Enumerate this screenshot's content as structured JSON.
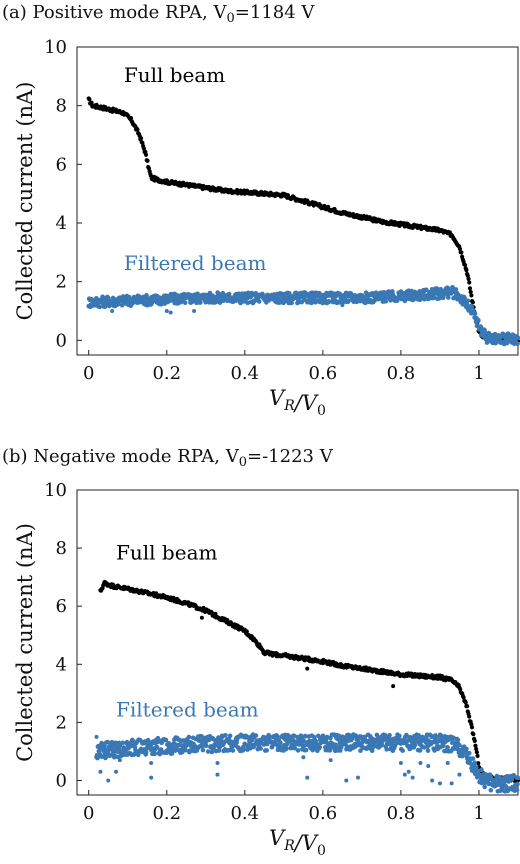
{
  "chart_data": [
    {
      "type": "scatter",
      "panel": "(a)",
      "title": "(a) Positive mode RPA, V",
      "title_sub": "0",
      "title_tail": "=1184 V",
      "xlabel": "V_R/V_0",
      "ylabel": "Collected current (nA)",
      "xlim": [
        -0.03,
        1.1
      ],
      "ylim": [
        -0.5,
        10
      ],
      "xticks": [
        0,
        0.2,
        0.4,
        0.6,
        0.8,
        1
      ],
      "yticks": [
        0,
        2,
        4,
        6,
        8,
        10
      ],
      "grid": false,
      "colors": {
        "full": "#000000",
        "filtered": "#3a78b5"
      },
      "annotations": [
        {
          "text": "Full beam",
          "x": 0.09,
          "y": 8.8,
          "series": "full"
        },
        {
          "text": "Filtered beam",
          "x": 0.09,
          "y": 2.4,
          "series": "filtered"
        }
      ],
      "series": [
        {
          "name": "Full beam",
          "key": "full",
          "x": [
            0,
            0.01,
            0.03,
            0.06,
            0.09,
            0.11,
            0.13,
            0.145,
            0.155,
            0.16,
            0.17,
            0.2,
            0.25,
            0.3,
            0.35,
            0.4,
            0.45,
            0.5,
            0.55,
            0.6,
            0.65,
            0.7,
            0.75,
            0.8,
            0.85,
            0.9,
            0.93,
            0.95,
            0.97,
            0.985,
            1.0,
            1.01,
            1.02,
            1.05,
            1.08,
            1.1
          ],
          "y": [
            8.2,
            8.0,
            7.95,
            7.85,
            7.75,
            7.5,
            7.0,
            6.4,
            5.8,
            5.55,
            5.5,
            5.4,
            5.3,
            5.2,
            5.1,
            5.05,
            5.0,
            4.95,
            4.75,
            4.55,
            4.35,
            4.2,
            4.05,
            3.95,
            3.85,
            3.75,
            3.6,
            3.2,
            2.3,
            1.2,
            0.3,
            0.1,
            0.05,
            0.02,
            0.02,
            0.02
          ]
        },
        {
          "name": "Filtered beam",
          "key": "filtered",
          "x": [
            0,
            0.1,
            0.2,
            0.3,
            0.4,
            0.5,
            0.6,
            0.7,
            0.8,
            0.85,
            0.9,
            0.93,
            0.95,
            0.97,
            0.99,
            1.0,
            1.01,
            1.02,
            1.05,
            1.08,
            1.1
          ],
          "y": [
            1.3,
            1.35,
            1.4,
            1.45,
            1.45,
            1.45,
            1.45,
            1.45,
            1.5,
            1.55,
            1.6,
            1.65,
            1.5,
            1.2,
            0.8,
            0.5,
            0.25,
            0.1,
            0.05,
            0.05,
            0.05
          ],
          "band": 0.18,
          "outliers": [
            [
              0.06,
              1.0
            ],
            [
              0.2,
              1.0
            ],
            [
              0.21,
              0.95
            ],
            [
              0.27,
              1.0
            ],
            [
              0.65,
              1.2
            ]
          ]
        }
      ]
    },
    {
      "type": "scatter",
      "panel": "(b)",
      "title": "(b) Negative mode RPA, V",
      "title_sub": "0",
      "title_tail": "=-1223 V",
      "xlabel": "V_R/V_0",
      "ylabel": "Collected current (nA)",
      "xlim": [
        -0.03,
        1.1
      ],
      "ylim": [
        -0.5,
        10
      ],
      "xticks": [
        0,
        0.2,
        0.4,
        0.6,
        0.8,
        1
      ],
      "yticks": [
        0,
        2,
        4,
        6,
        8,
        10
      ],
      "grid": false,
      "colors": {
        "full": "#000000",
        "filtered": "#3a78b5"
      },
      "annotations": [
        {
          "text": "Full beam",
          "x": 0.07,
          "y": 7.6,
          "series": "full"
        },
        {
          "text": "Filtered beam",
          "x": 0.07,
          "y": 2.2,
          "series": "filtered"
        }
      ],
      "series": [
        {
          "name": "Full beam",
          "key": "full",
          "x": [
            0.03,
            0.04,
            0.06,
            0.1,
            0.15,
            0.2,
            0.25,
            0.3,
            0.35,
            0.4,
            0.42,
            0.44,
            0.45,
            0.47,
            0.5,
            0.55,
            0.6,
            0.65,
            0.7,
            0.75,
            0.8,
            0.85,
            0.9,
            0.93,
            0.95,
            0.97,
            0.99,
            1.0,
            1.01,
            1.03,
            1.06,
            1.1
          ],
          "y": [
            6.5,
            6.8,
            6.7,
            6.6,
            6.45,
            6.3,
            6.1,
            5.85,
            5.5,
            5.15,
            4.9,
            4.6,
            4.4,
            4.35,
            4.3,
            4.2,
            4.1,
            3.95,
            3.85,
            3.75,
            3.65,
            3.6,
            3.55,
            3.45,
            3.2,
            2.5,
            1.3,
            0.5,
            0.2,
            0.1,
            0.05,
            0.05
          ],
          "outliers": [
            [
              0.29,
              5.6
            ],
            [
              0.56,
              3.85
            ],
            [
              0.78,
              3.25
            ]
          ]
        },
        {
          "name": "Filtered beam",
          "key": "filtered",
          "x": [
            0.02,
            0.05,
            0.1,
            0.15,
            0.2,
            0.3,
            0.4,
            0.5,
            0.6,
            0.7,
            0.8,
            0.85,
            0.9,
            0.93,
            0.95,
            0.97,
            0.99,
            1.0,
            1.02,
            1.05,
            1.08,
            1.1
          ],
          "y": [
            1.0,
            1.05,
            1.1,
            1.15,
            1.2,
            1.25,
            1.3,
            1.3,
            1.3,
            1.3,
            1.3,
            1.3,
            1.3,
            1.25,
            1.1,
            0.8,
            0.4,
            0.15,
            -0.05,
            -0.1,
            -0.1,
            -0.1
          ],
          "band": 0.28,
          "outliers": [
            [
              0.02,
              1.5
            ],
            [
              0.03,
              0.3
            ],
            [
              0.05,
              0.0
            ],
            [
              0.07,
              0.3
            ],
            [
              0.08,
              0.7
            ],
            [
              0.16,
              0.6
            ],
            [
              0.16,
              0.1
            ],
            [
              0.33,
              0.6
            ],
            [
              0.33,
              0.2
            ],
            [
              0.55,
              0.8
            ],
            [
              0.56,
              0.1
            ],
            [
              0.62,
              0.7
            ],
            [
              0.66,
              0.0
            ],
            [
              0.69,
              0.1
            ],
            [
              0.8,
              0.6
            ],
            [
              0.81,
              0.2
            ],
            [
              0.82,
              0.3
            ],
            [
              0.83,
              0.1
            ],
            [
              0.85,
              0.6
            ],
            [
              0.87,
              0.5
            ],
            [
              0.88,
              0.0
            ],
            [
              0.9,
              -0.1
            ],
            [
              0.92,
              0.6
            ],
            [
              0.93,
              -0.1
            ],
            [
              0.95,
              0.2
            ]
          ]
        }
      ]
    }
  ]
}
